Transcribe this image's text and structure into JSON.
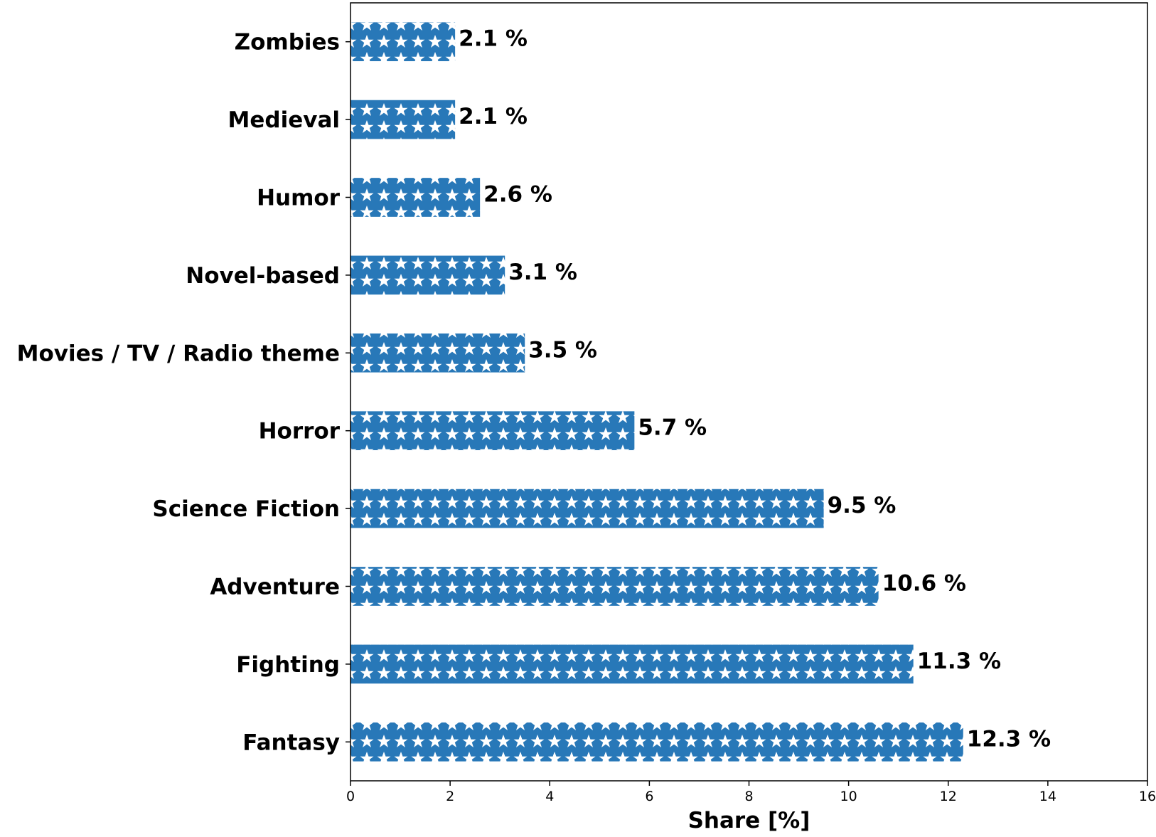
{
  "chart_data": {
    "type": "bar",
    "orientation": "horizontal",
    "categories": [
      "Fantasy",
      "Fighting",
      "Adventure",
      "Science Fiction",
      "Horror",
      "Movies / TV / Radio theme",
      "Novel-based",
      "Humor",
      "Medieval",
      "Zombies"
    ],
    "values": [
      12.3,
      11.3,
      10.6,
      9.5,
      5.7,
      3.5,
      3.1,
      2.6,
      2.1,
      2.1
    ],
    "value_labels": [
      "12.3 %",
      "11.3 %",
      "10.6 %",
      "9.5 %",
      "5.7 %",
      "3.5 %",
      "3.1 %",
      "2.6 %",
      "2.1 %",
      "2.1 %"
    ],
    "xlabel": "Share [%]",
    "ylabel": "",
    "xlim": [
      0,
      16
    ],
    "xticks": [
      0,
      2,
      4,
      6,
      8,
      10,
      12,
      14,
      16
    ],
    "xtick_labels": [
      "0",
      "2",
      "4",
      "6",
      "8",
      "10",
      "12",
      "14",
      "16"
    ],
    "grid": false,
    "bar_color": "#2878b8",
    "bar_pattern": "white-stars"
  }
}
